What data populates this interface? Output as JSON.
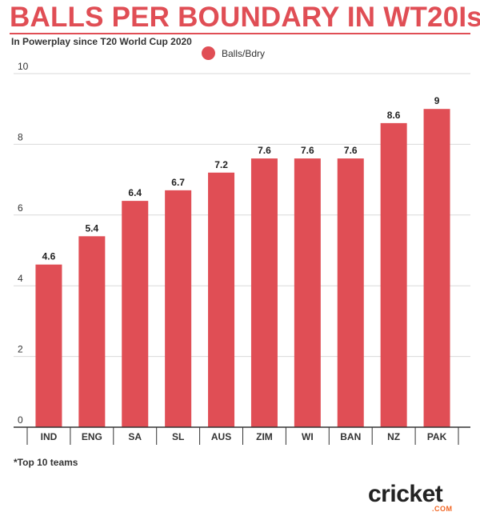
{
  "header": {
    "title": "BALLS PER BOUNDARY IN WT20Is",
    "subtitle": "In Powerplay since T20 World Cup 2020"
  },
  "footnote": "*Top 10 teams",
  "logo": {
    "word": "cricket",
    "sub": ".COM"
  },
  "colors": {
    "bar": "#e04e55",
    "accent": "#e04e55",
    "logo_orange": "#f26522"
  },
  "chart_data": {
    "type": "bar",
    "categories": [
      "IND",
      "ENG",
      "SA",
      "SL",
      "AUS",
      "ZIM",
      "WI",
      "BAN",
      "NZ",
      "PAK"
    ],
    "series": [
      {
        "name": "Balls/Bdry",
        "values": [
          4.6,
          5.4,
          6.4,
          6.7,
          7.2,
          7.6,
          7.6,
          7.6,
          8.6,
          9
        ]
      }
    ],
    "data_labels": [
      "4.6",
      "5.4",
      "6.4",
      "6.7",
      "7.2",
      "7.6",
      "7.6",
      "7.6",
      "8.6",
      "9"
    ],
    "yticks": [
      "0",
      "2",
      "4",
      "6",
      "8",
      "10"
    ],
    "ylim": [
      0,
      10
    ],
    "grid": true,
    "legend_position": "top-center",
    "title": "BALLS PER BOUNDARY IN WT20Is",
    "subtitle": "In Powerplay since T20 World Cup 2020",
    "xlabel": "",
    "ylabel": ""
  }
}
